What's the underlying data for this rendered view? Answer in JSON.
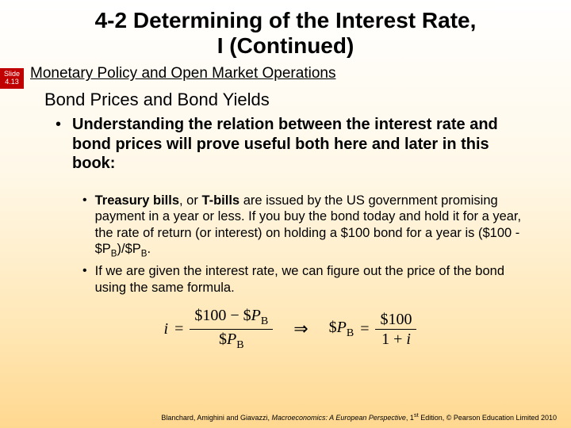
{
  "title_line1": "4-2  Determining of the Interest Rate,",
  "title_line2": "I (Continued)",
  "slide_tab_l1": "Slide",
  "slide_tab_l2": "4.13",
  "subtitle": "Monetary Policy and Open Market Operations",
  "heading2": "Bond Prices and Bond Yields",
  "bullet1": "Understanding the relation between the interest rate and bond prices will prove useful both here and later in this book:",
  "bullet2a_prefix": "Treasury bills",
  "bullet2a_mid": ", or ",
  "bullet2a_bold2": "T-bills",
  "bullet2a_rest": " are issued by the US government promising payment in a year or less. If you buy the bond today and hold it for a year, the rate of return (or interest) on holding a $100 bond for a year is ($100 - $P",
  "bullet2a_sub1": "B",
  "bullet2a_rest2": ")/$P",
  "bullet2a_sub2": "B",
  "bullet2a_end": ".",
  "bullet2b": "If we are given the interest rate, we can figure out the price of the bond using the same formula.",
  "formula": {
    "lhs_var": "i",
    "lhs_num_a": "$100 − $",
    "lhs_num_var": "P",
    "lhs_num_sub": "B",
    "lhs_den_a": "$",
    "lhs_den_var": "P",
    "lhs_den_sub": "B",
    "arrow": "⇒",
    "rhs_lhs_a": "$",
    "rhs_lhs_var": "P",
    "rhs_lhs_sub": "B",
    "rhs_num": "$100",
    "rhs_den_a": "1 + ",
    "rhs_den_var": "i"
  },
  "footer_a": "Blanchard, Amighini and Giavazzi, ",
  "footer_ital": "Macroeconomics: A European Perspective",
  "footer_b": ", 1",
  "footer_sup": "st",
  "footer_c": " Edition, © Pearson Education Limited 2010",
  "colors": {
    "tab_bg": "#c00000",
    "tab_fg": "#ffffff",
    "text": "#000000"
  }
}
